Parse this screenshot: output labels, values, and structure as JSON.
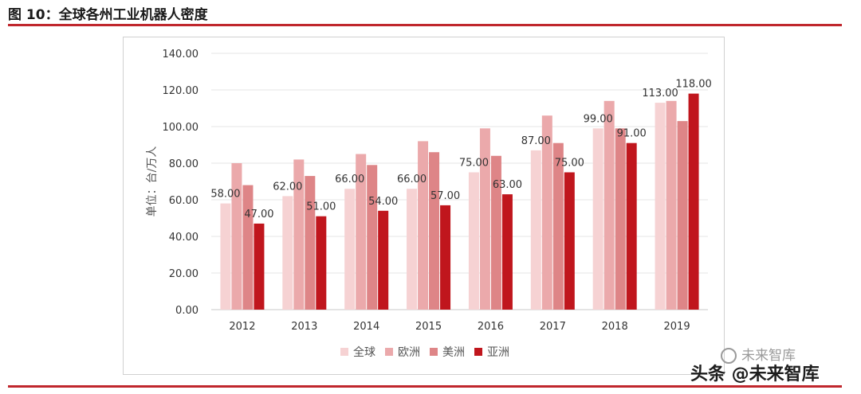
{
  "figure": {
    "title": "图 10：全球各州工业机器人密度"
  },
  "colors": {
    "rule": "#c0272d",
    "series": [
      "#f6d2d3",
      "#eba9ab",
      "#de8587",
      "#c0161d"
    ]
  },
  "chart_data": {
    "type": "bar",
    "categories": [
      "2012",
      "2013",
      "2014",
      "2015",
      "2016",
      "2017",
      "2018",
      "2019"
    ],
    "series": [
      {
        "name": "全球",
        "values": [
          58,
          62,
          66,
          66,
          75,
          87,
          99,
          113
        ]
      },
      {
        "name": "欧洲",
        "values": [
          80,
          82,
          85,
          92,
          99,
          106,
          114,
          114
        ]
      },
      {
        "name": "美洲",
        "values": [
          68,
          73,
          79,
          86,
          84,
          91,
          99,
          103
        ]
      },
      {
        "name": "亚洲",
        "values": [
          47,
          51,
          54,
          57,
          63,
          75,
          91,
          118
        ]
      }
    ],
    "data_labels": [
      {
        "series": "全球",
        "category": "2012",
        "text": "58.00"
      },
      {
        "series": "亚洲",
        "category": "2012",
        "text": "47.00"
      },
      {
        "series": "全球",
        "category": "2013",
        "text": "62.00"
      },
      {
        "series": "亚洲",
        "category": "2013",
        "text": "51.00"
      },
      {
        "series": "全球",
        "category": "2014",
        "text": "66.00"
      },
      {
        "series": "亚洲",
        "category": "2014",
        "text": "54.00"
      },
      {
        "series": "全球",
        "category": "2015",
        "text": "66.00"
      },
      {
        "series": "亚洲",
        "category": "2015",
        "text": "57.00"
      },
      {
        "series": "全球",
        "category": "2016",
        "text": "75.00"
      },
      {
        "series": "亚洲",
        "category": "2016",
        "text": "63.00"
      },
      {
        "series": "全球",
        "category": "2017",
        "text": "87.00"
      },
      {
        "series": "亚洲",
        "category": "2017",
        "text": "75.00"
      },
      {
        "series": "全球",
        "category": "2018",
        "text": "99.00"
      },
      {
        "series": "亚洲",
        "category": "2018",
        "text": "91.00"
      },
      {
        "series": "全球",
        "category": "2019",
        "text": "113.00"
      },
      {
        "series": "亚洲",
        "category": "2019",
        "text": "118.00"
      }
    ],
    "yticks": [
      "0.00",
      "20.00",
      "40.00",
      "60.00",
      "80.00",
      "100.00",
      "120.00",
      "140.00"
    ],
    "ylim": [
      0,
      140
    ],
    "ylabel": "单位：台/万人",
    "xlabel": "",
    "legend_position": "bottom"
  },
  "watermark": {
    "wechat": "未来智库",
    "toutiao": "头条 @未来智库"
  }
}
